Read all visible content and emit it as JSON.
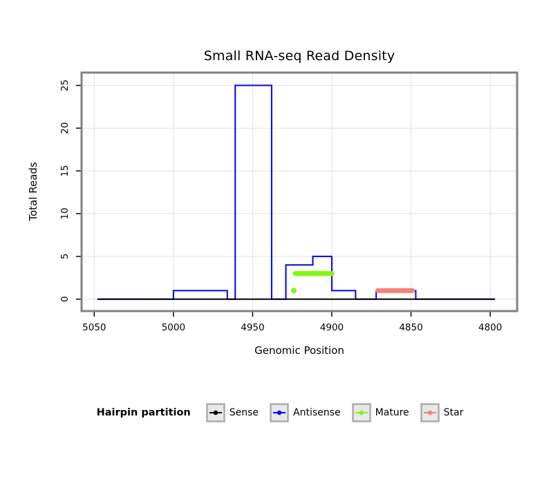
{
  "chart_data": {
    "type": "line",
    "title": "Small RNA-seq Read Density",
    "xlabel": "Genomic Position",
    "ylabel": "Total Reads",
    "x_ticks": [
      5050,
      5000,
      4950,
      4900,
      4850,
      4800
    ],
    "y_ticks": [
      0,
      5,
      10,
      15,
      20,
      25
    ],
    "xlim": [
      5058,
      4783
    ],
    "ylim": [
      -1.4,
      26.5
    ],
    "x_reversed": true,
    "grid": true,
    "y_tick_labels_rotated": true,
    "colors": {
      "grid": "#E3E3E3",
      "frame": "#808080",
      "tick": "#000000",
      "background": "#FFFFFF"
    },
    "series": [
      {
        "name": "Antisense",
        "color": "#0000FF",
        "width": 2,
        "points": [
          [
            5048,
            0
          ],
          [
            5000,
            0
          ],
          [
            5000,
            1
          ],
          [
            4966,
            1
          ],
          [
            4966,
            0
          ],
          [
            4961,
            0
          ],
          [
            4961,
            25
          ],
          [
            4938,
            25
          ],
          [
            4938,
            0
          ],
          [
            4929,
            0
          ],
          [
            4929,
            4
          ],
          [
            4912,
            4
          ],
          [
            4912,
            5
          ],
          [
            4900,
            5
          ],
          [
            4900,
            1
          ],
          [
            4885,
            1
          ],
          [
            4885,
            0
          ],
          [
            4872,
            0
          ],
          [
            4872,
            1
          ],
          [
            4847,
            1
          ],
          [
            4847,
            0
          ],
          [
            4797,
            0
          ]
        ],
        "dots": []
      },
      {
        "name": "Sense",
        "color": "#000000",
        "width": 2,
        "points": [
          [
            5048,
            0
          ],
          [
            4797,
            0
          ]
        ],
        "dots": []
      },
      {
        "name": "Mature",
        "color": "#7CFC00",
        "width": 7,
        "points": [
          [
            4923,
            3
          ],
          [
            4900,
            3
          ]
        ],
        "dots": [
          [
            4924,
            1
          ]
        ]
      },
      {
        "name": "Star",
        "color": "#FA8072",
        "width": 7,
        "points": [
          [
            4871,
            1
          ],
          [
            4849,
            1
          ]
        ],
        "dots": []
      }
    ],
    "legend": {
      "title": "Hairpin partition",
      "position": "bottom",
      "items": [
        {
          "label": "Sense",
          "color": "#000000"
        },
        {
          "label": "Antisense",
          "color": "#0000FF"
        },
        {
          "label": "Mature",
          "color": "#7CFC00"
        },
        {
          "label": "Star",
          "color": "#FA8072"
        }
      ]
    }
  }
}
